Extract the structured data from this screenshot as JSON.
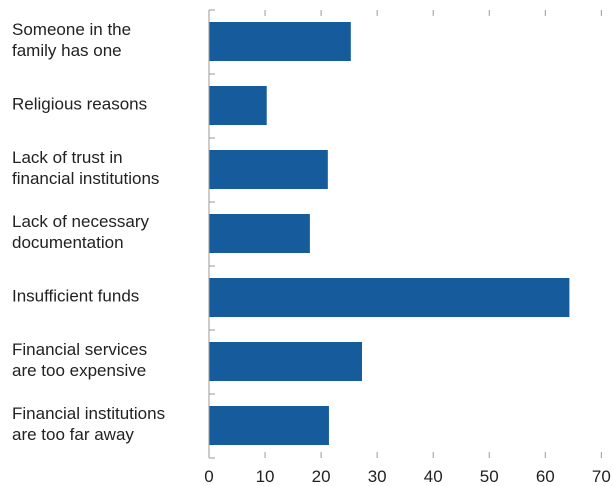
{
  "chart_data": {
    "type": "bar",
    "orientation": "horizontal",
    "categories": [
      [
        "Someone in the",
        "family has one"
      ],
      [
        "Religious reasons"
      ],
      [
        "Lack of trust in",
        "financial institutions"
      ],
      [
        "Lack of necessary",
        "documentation"
      ],
      [
        "Insufficient funds"
      ],
      [
        "Financial services",
        "are too expensive"
      ],
      [
        "Financial institutions",
        "are too far away"
      ]
    ],
    "values": [
      25.3,
      10.3,
      21.2,
      18.0,
      64.3,
      27.3,
      21.4
    ],
    "xlim": [
      0,
      70
    ],
    "xticks": [
      "0",
      "10",
      "20",
      "30",
      "40",
      "50",
      "60",
      "70"
    ],
    "bar_color": "#165c9c",
    "grid": false,
    "title": "",
    "xlabel": "",
    "ylabel": ""
  }
}
